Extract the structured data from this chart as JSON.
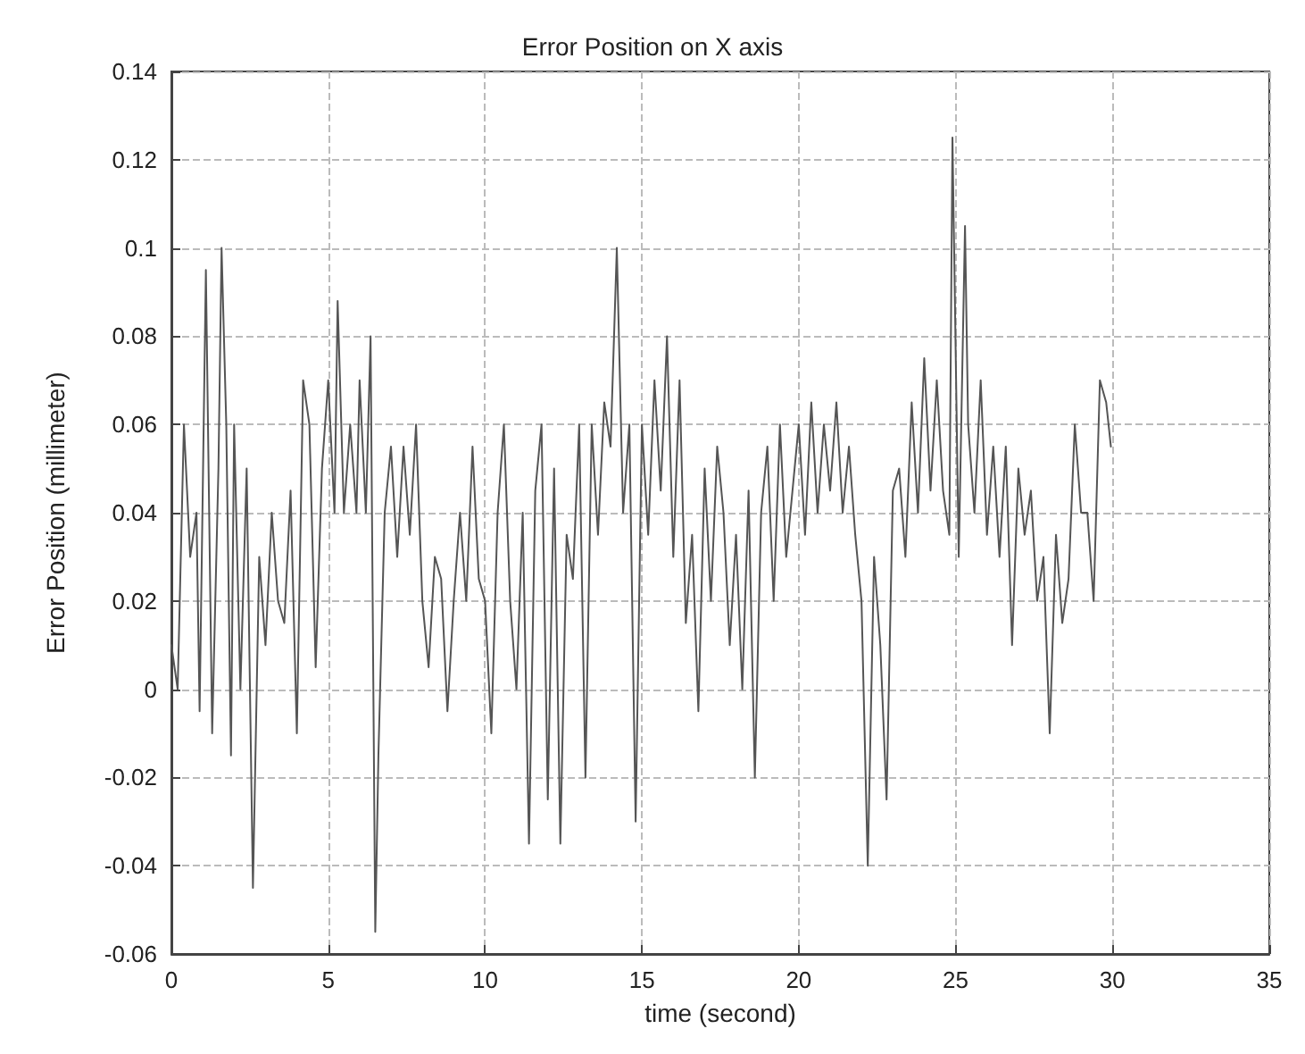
{
  "chart_data": {
    "type": "line",
    "title": "Error Position on X axis",
    "xlabel": "time (second)",
    "ylabel": "Error Position (millimeter)",
    "x": [
      0,
      0.2,
      0.4,
      0.6,
      0.8,
      0.9,
      1.1,
      1.3,
      1.5,
      1.6,
      1.75,
      1.9,
      2.0,
      2.2,
      2.4,
      2.6,
      2.8,
      3.0,
      3.2,
      3.4,
      3.6,
      3.8,
      4.0,
      4.2,
      4.4,
      4.6,
      4.8,
      5.0,
      5.2,
      5.3,
      5.5,
      5.7,
      5.9,
      6.0,
      6.2,
      6.35,
      6.5,
      6.6,
      6.8,
      7.0,
      7.2,
      7.4,
      7.6,
      7.8,
      8.0,
      8.2,
      8.4,
      8.6,
      8.8,
      9.0,
      9.2,
      9.4,
      9.6,
      9.8,
      10.0,
      10.2,
      10.4,
      10.6,
      10.8,
      11.0,
      11.2,
      11.4,
      11.6,
      11.8,
      12.0,
      12.2,
      12.4,
      12.6,
      12.8,
      13.0,
      13.2,
      13.4,
      13.6,
      13.8,
      14.0,
      14.2,
      14.4,
      14.6,
      14.8,
      15.0,
      15.2,
      15.4,
      15.6,
      15.8,
      16.0,
      16.2,
      16.4,
      16.6,
      16.8,
      17.0,
      17.2,
      17.4,
      17.6,
      17.8,
      18.0,
      18.2,
      18.4,
      18.6,
      18.8,
      19.0,
      19.2,
      19.4,
      19.6,
      19.8,
      20.0,
      20.2,
      20.4,
      20.6,
      20.8,
      21.0,
      21.2,
      21.4,
      21.6,
      21.8,
      22.0,
      22.2,
      22.4,
      22.6,
      22.8,
      23.0,
      23.2,
      23.4,
      23.6,
      23.8,
      24.0,
      24.2,
      24.4,
      24.6,
      24.8,
      24.9,
      25.1,
      25.3,
      25.4,
      25.6,
      25.8,
      26.0,
      26.2,
      26.4,
      26.6,
      26.8,
      27.0,
      27.2,
      27.4,
      27.6,
      27.8,
      28.0,
      28.2,
      28.4,
      28.6,
      28.8,
      29.0,
      29.2,
      29.4,
      29.6,
      29.8,
      29.95
    ],
    "series": [
      {
        "color": "#555555",
        "values": [
          0.01,
          0.0,
          0.06,
          0.03,
          0.04,
          -0.005,
          0.095,
          -0.01,
          0.05,
          0.1,
          0.06,
          -0.015,
          0.06,
          0.0,
          0.05,
          -0.045,
          0.03,
          0.01,
          0.04,
          0.02,
          0.015,
          0.045,
          -0.01,
          0.07,
          0.06,
          0.005,
          0.05,
          0.07,
          0.04,
          0.088,
          0.04,
          0.06,
          0.04,
          0.07,
          0.04,
          0.08,
          -0.055,
          -0.015,
          0.04,
          0.055,
          0.03,
          0.055,
          0.035,
          0.06,
          0.02,
          0.005,
          0.03,
          0.025,
          -0.005,
          0.02,
          0.04,
          0.02,
          0.055,
          0.025,
          0.02,
          -0.01,
          0.04,
          0.06,
          0.02,
          0.0,
          0.04,
          -0.035,
          0.045,
          0.06,
          -0.025,
          0.05,
          -0.035,
          0.035,
          0.025,
          0.06,
          -0.02,
          0.06,
          0.035,
          0.065,
          0.055,
          0.1,
          0.04,
          0.06,
          -0.03,
          0.06,
          0.035,
          0.07,
          0.045,
          0.08,
          0.03,
          0.07,
          0.015,
          0.035,
          -0.005,
          0.05,
          0.02,
          0.055,
          0.04,
          0.01,
          0.035,
          0.0,
          0.045,
          -0.02,
          0.04,
          0.055,
          0.02,
          0.06,
          0.03,
          0.045,
          0.06,
          0.035,
          0.065,
          0.04,
          0.06,
          0.045,
          0.065,
          0.04,
          0.055,
          0.035,
          0.02,
          -0.04,
          0.03,
          0.01,
          -0.025,
          0.045,
          0.05,
          0.03,
          0.065,
          0.04,
          0.075,
          0.045,
          0.07,
          0.045,
          0.035,
          0.125,
          0.03,
          0.105,
          0.06,
          0.04,
          0.07,
          0.035,
          0.055,
          0.03,
          0.055,
          0.01,
          0.05,
          0.035,
          0.045,
          0.02,
          0.03,
          -0.01,
          0.035,
          0.015,
          0.025,
          0.06,
          0.04,
          0.04,
          0.02,
          0.07,
          0.065,
          0.055
        ]
      }
    ],
    "xlim": [
      0,
      35
    ],
    "xticks": [
      0,
      5,
      10,
      15,
      20,
      25,
      30,
      35
    ],
    "ylim": [
      -0.06,
      0.14
    ],
    "yticks": [
      -0.06,
      -0.04,
      -0.02,
      0,
      0.02,
      0.04,
      0.06,
      0.08,
      0.1,
      0.12,
      0.14
    ],
    "grid": true,
    "marker": "none",
    "line_style": "solid"
  }
}
